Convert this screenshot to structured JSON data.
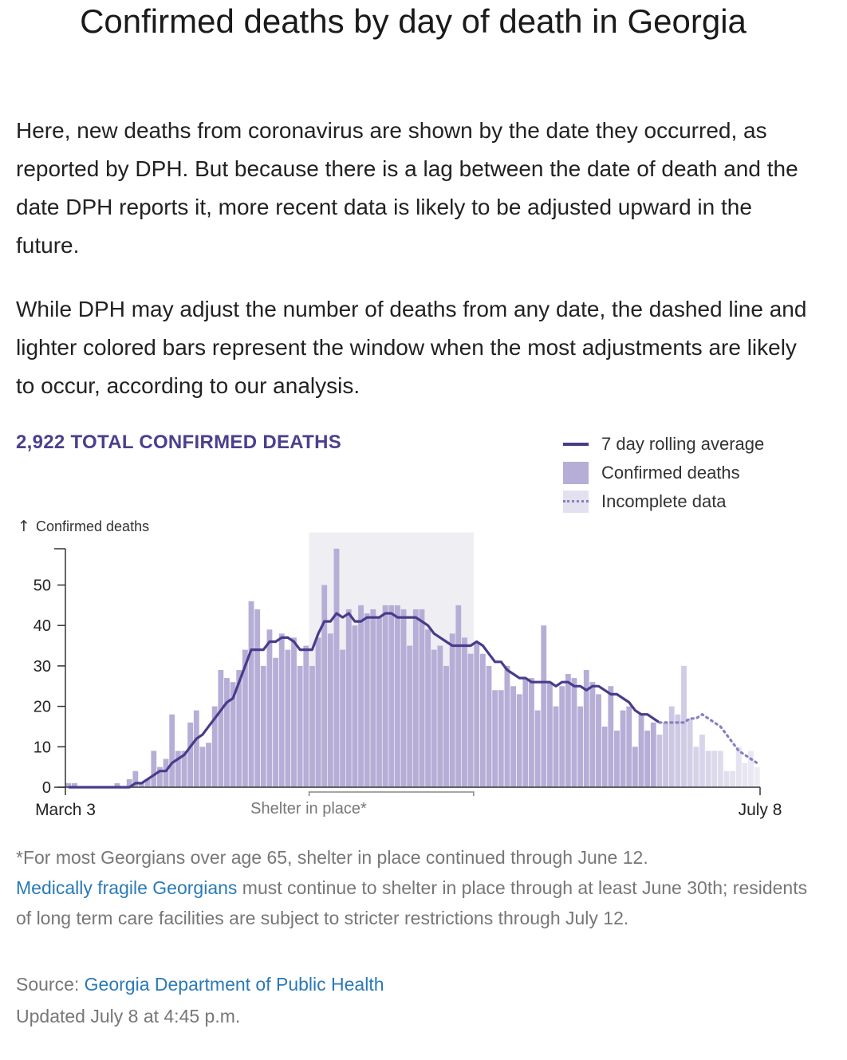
{
  "title": "Confirmed deaths by day of death in Georgia",
  "paragraphs": [
    "Here, new deaths from coronavirus are shown by the date they occurred, as reported by DPH. But because there is a lag between the date of death and the date DPH reports it, more recent data is likely to be adjusted upward in the future.",
    "While DPH may adjust the number of deaths from any date, the dashed line and lighter colored bars represent the window when the most adjustments are likely to occur, according to our analysis."
  ],
  "total_label": "2,922 TOTAL CONFIRMED DEATHS",
  "legend": {
    "rolling": "7 day rolling average",
    "bars": "Confirmed deaths",
    "incomplete": "Incomplete data"
  },
  "colors": {
    "bar": "#b6aed6",
    "bar_incomplete": "#e3e0f0",
    "line": "#4a3b8c",
    "line_incomplete": "#8a7fc0",
    "shelter_band": "#eeeef3",
    "accent_text": "#4b3f8f",
    "link": "#2a7ab5"
  },
  "chart_data": {
    "type": "bar",
    "ylabel": "Confirmed deaths",
    "ylim": [
      0,
      60
    ],
    "yticks": [
      0,
      10,
      20,
      30,
      40,
      50
    ],
    "x_start_label": "March 3",
    "x_end_label": "July 8",
    "annotation": "Shelter in place*",
    "annotation_range_days": [
      40,
      67
    ],
    "incomplete_from_day": 97,
    "grid": false,
    "series": [
      {
        "name": "Confirmed deaths",
        "type": "bar",
        "values": [
          1,
          1,
          0,
          0,
          0,
          0,
          0,
          0,
          1,
          0,
          2,
          4,
          1,
          2,
          9,
          5,
          7,
          18,
          9,
          9,
          16,
          19,
          10,
          11,
          20,
          29,
          27,
          26,
          29,
          34,
          46,
          44,
          30,
          39,
          32,
          38,
          34,
          37,
          30,
          35,
          30,
          37,
          50,
          38,
          59,
          34,
          44,
          40,
          45,
          43,
          44,
          42,
          45,
          45,
          45,
          44,
          35,
          44,
          44,
          39,
          34,
          35,
          30,
          38,
          45,
          37,
          33,
          36,
          33,
          30,
          24,
          24,
          30,
          25,
          23,
          27,
          27,
          19,
          40,
          26,
          20,
          25,
          28,
          27,
          20,
          29,
          26,
          23,
          15,
          25,
          14,
          19,
          20,
          10,
          18,
          14,
          16,
          13,
          16,
          20,
          18,
          30,
          17,
          10,
          13,
          9,
          9,
          9,
          4,
          4,
          10,
          6,
          9,
          5
        ]
      },
      {
        "name": "7 day rolling average",
        "type": "line",
        "values": [
          0,
          0,
          0,
          0,
          0,
          0,
          0,
          0,
          0,
          0,
          0,
          1,
          1,
          2,
          3,
          4,
          4,
          6,
          7,
          8,
          10,
          12,
          13,
          15,
          17,
          19,
          21,
          22,
          26,
          30,
          34,
          34,
          34,
          36,
          36,
          37,
          37,
          36,
          34,
          34,
          34,
          38,
          41,
          41,
          43,
          42,
          43,
          41,
          41,
          42,
          42,
          42,
          43,
          43,
          42,
          42,
          42,
          42,
          41,
          40,
          38,
          37,
          36,
          35,
          35,
          35,
          35,
          36,
          35,
          33,
          31,
          31,
          29,
          28,
          27,
          27,
          26,
          26,
          26,
          26,
          25,
          26,
          26,
          25,
          25,
          24,
          25,
          25,
          24,
          23,
          23,
          22,
          21,
          19,
          18,
          18,
          17,
          16,
          16,
          16,
          16,
          16,
          17,
          17,
          18,
          17,
          16,
          15,
          13,
          11,
          9,
          8,
          7,
          6
        ]
      }
    ]
  },
  "footnote": {
    "line1": "*For most Georgians over age 65, shelter in place continued through June 12.",
    "link_text": "Medically fragile Georgians",
    "rest": " must continue to shelter in place through at least June 30th; residents of long term care facilities are subject to stricter restrictions through July 12."
  },
  "source": {
    "label": "Source: ",
    "link_text": "Georgia Department of Public Health"
  },
  "updated": "Updated July 8 at 4:45 p.m."
}
